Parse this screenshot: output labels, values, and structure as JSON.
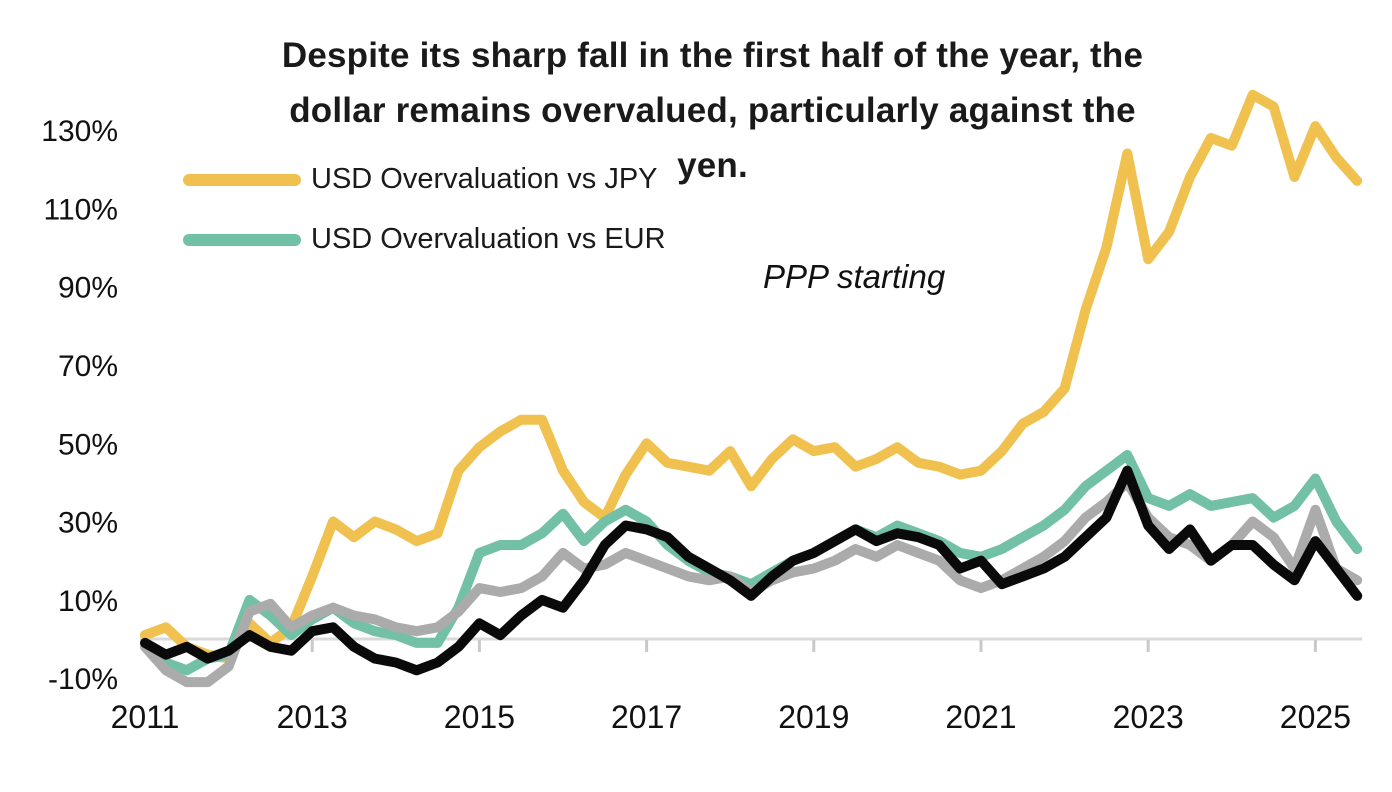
{
  "title": {
    "lines": [
      "Despite its sharp fall in the first half of the year, the",
      "dollar remains overvalued, particularly against the",
      "yen."
    ]
  },
  "annotation": {
    "text": "PPP starting"
  },
  "legend": {
    "items": [
      {
        "label": "USD Overvaluation vs JPY",
        "color": "#F0C14F"
      },
      {
        "label": "USD Overvaluation vs EUR",
        "color": "#72C0A5"
      }
    ]
  },
  "colors": {
    "background": "#ffffff",
    "axis_line": "#d9d9d9",
    "tick_mark": "#c9c9c9",
    "text": "#111111"
  },
  "chart_data": {
    "type": "line",
    "title": "Despite its sharp fall in the first half of the year, the dollar remains overvalued, particularly against the yen.",
    "xlabel": "",
    "ylabel": "",
    "xlim": [
      2010.8,
      2025.6
    ],
    "ylim": [
      -15,
      145
    ],
    "grid": "baseline-only",
    "legend_position": "top-left",
    "x_ticks": [
      {
        "year": 2011,
        "label": "2011"
      },
      {
        "year": 2013,
        "label": "2013"
      },
      {
        "year": 2015,
        "label": "2015"
      },
      {
        "year": 2017,
        "label": "2017"
      },
      {
        "year": 2019,
        "label": "2019"
      },
      {
        "year": 2021,
        "label": "2021"
      },
      {
        "year": 2023,
        "label": "2023"
      },
      {
        "year": 2025,
        "label": "2025"
      }
    ],
    "y_ticks": [
      {
        "value": 130,
        "label": "130%"
      },
      {
        "value": 110,
        "label": "110%"
      },
      {
        "value": 90,
        "label": "90%"
      },
      {
        "value": 70,
        "label": "70%"
      },
      {
        "value": 50,
        "label": "50%"
      },
      {
        "value": 30,
        "label": "30%"
      },
      {
        "value": 10,
        "label": "10%"
      },
      {
        "value": -10,
        "label": "-10%"
      }
    ],
    "x": [
      2011.0,
      2011.25,
      2011.5,
      2011.75,
      2012.0,
      2012.25,
      2012.5,
      2012.75,
      2013.0,
      2013.25,
      2013.5,
      2013.75,
      2014.0,
      2014.25,
      2014.5,
      2014.75,
      2015.0,
      2015.25,
      2015.5,
      2015.75,
      2016.0,
      2016.25,
      2016.5,
      2016.75,
      2017.0,
      2017.25,
      2017.5,
      2017.75,
      2018.0,
      2018.25,
      2018.5,
      2018.75,
      2019.0,
      2019.25,
      2019.5,
      2019.75,
      2020.0,
      2020.25,
      2020.5,
      2020.75,
      2021.0,
      2021.25,
      2021.5,
      2021.75,
      2022.0,
      2022.25,
      2022.5,
      2022.75,
      2023.0,
      2023.25,
      2023.5,
      2023.75,
      2024.0,
      2024.25,
      2024.5,
      2024.75,
      2025.0,
      2025.25,
      2025.5
    ],
    "unit": "percent",
    "series": [
      {
        "id": "usd-jpy",
        "legend_label": "USD Overvaluation vs JPY",
        "color": "#F0C14F",
        "stroke_width": 10,
        "values": [
          1,
          3,
          -2,
          -4,
          -5,
          4,
          -1,
          3,
          16,
          30,
          26,
          30,
          28,
          25,
          27,
          43,
          49,
          53,
          56,
          56,
          43,
          35,
          31,
          42,
          50,
          45,
          44,
          43,
          48,
          39,
          46,
          51,
          48,
          49,
          44,
          46,
          49,
          45,
          44,
          42,
          43,
          48,
          55,
          58,
          64,
          84,
          100,
          124,
          97,
          104,
          118,
          128,
          126,
          139,
          136,
          118,
          131,
          123,
          117
        ]
      },
      {
        "id": "usd-eur",
        "legend_label": "USD Overvaluation vs EUR",
        "color": "#72C0A5",
        "stroke_width": 10,
        "values": [
          -2,
          -6,
          -8,
          -5,
          -4,
          10,
          6,
          1,
          5,
          8,
          4,
          2,
          1,
          -1,
          -1,
          8,
          22,
          24,
          24,
          27,
          32,
          25,
          30,
          33,
          30,
          24,
          20,
          17,
          16,
          14,
          17,
          20,
          22,
          25,
          28,
          26,
          29,
          27,
          25,
          22,
          21,
          23,
          26,
          29,
          33,
          39,
          43,
          47,
          36,
          34,
          37,
          34,
          35,
          36,
          31,
          34,
          41,
          30,
          23
        ]
      },
      {
        "id": "unlabeled-gray",
        "legend_label": null,
        "color": "#ABABAB",
        "stroke_width": 10,
        "values": [
          -2,
          -8,
          -11,
          -11,
          -7,
          7,
          9,
          3,
          6,
          8,
          6,
          5,
          3,
          2,
          3,
          7,
          13,
          12,
          13,
          16,
          22,
          18,
          19,
          22,
          20,
          18,
          16,
          15,
          16,
          12,
          15,
          17,
          18,
          20,
          23,
          21,
          24,
          22,
          20,
          15,
          13,
          15,
          18,
          21,
          25,
          31,
          35,
          40,
          31,
          26,
          24,
          20,
          24,
          30,
          26,
          18,
          33,
          18,
          15
        ]
      },
      {
        "id": "unlabeled-black",
        "legend_label": null,
        "color": "#0A0A0A",
        "stroke_width": 10,
        "values": [
          -1,
          -4,
          -2,
          -5,
          -3,
          1,
          -2,
          -3,
          2,
          3,
          -2,
          -5,
          -6,
          -8,
          -6,
          -2,
          4,
          1,
          6,
          10,
          8,
          15,
          24,
          29,
          28,
          26,
          21,
          18,
          15,
          11,
          16,
          20,
          22,
          25,
          28,
          25,
          27,
          26,
          24,
          18,
          20,
          14,
          16,
          18,
          21,
          26,
          31,
          43,
          29,
          23,
          28,
          20,
          24,
          24,
          19,
          15,
          25,
          18,
          11
        ]
      }
    ]
  }
}
